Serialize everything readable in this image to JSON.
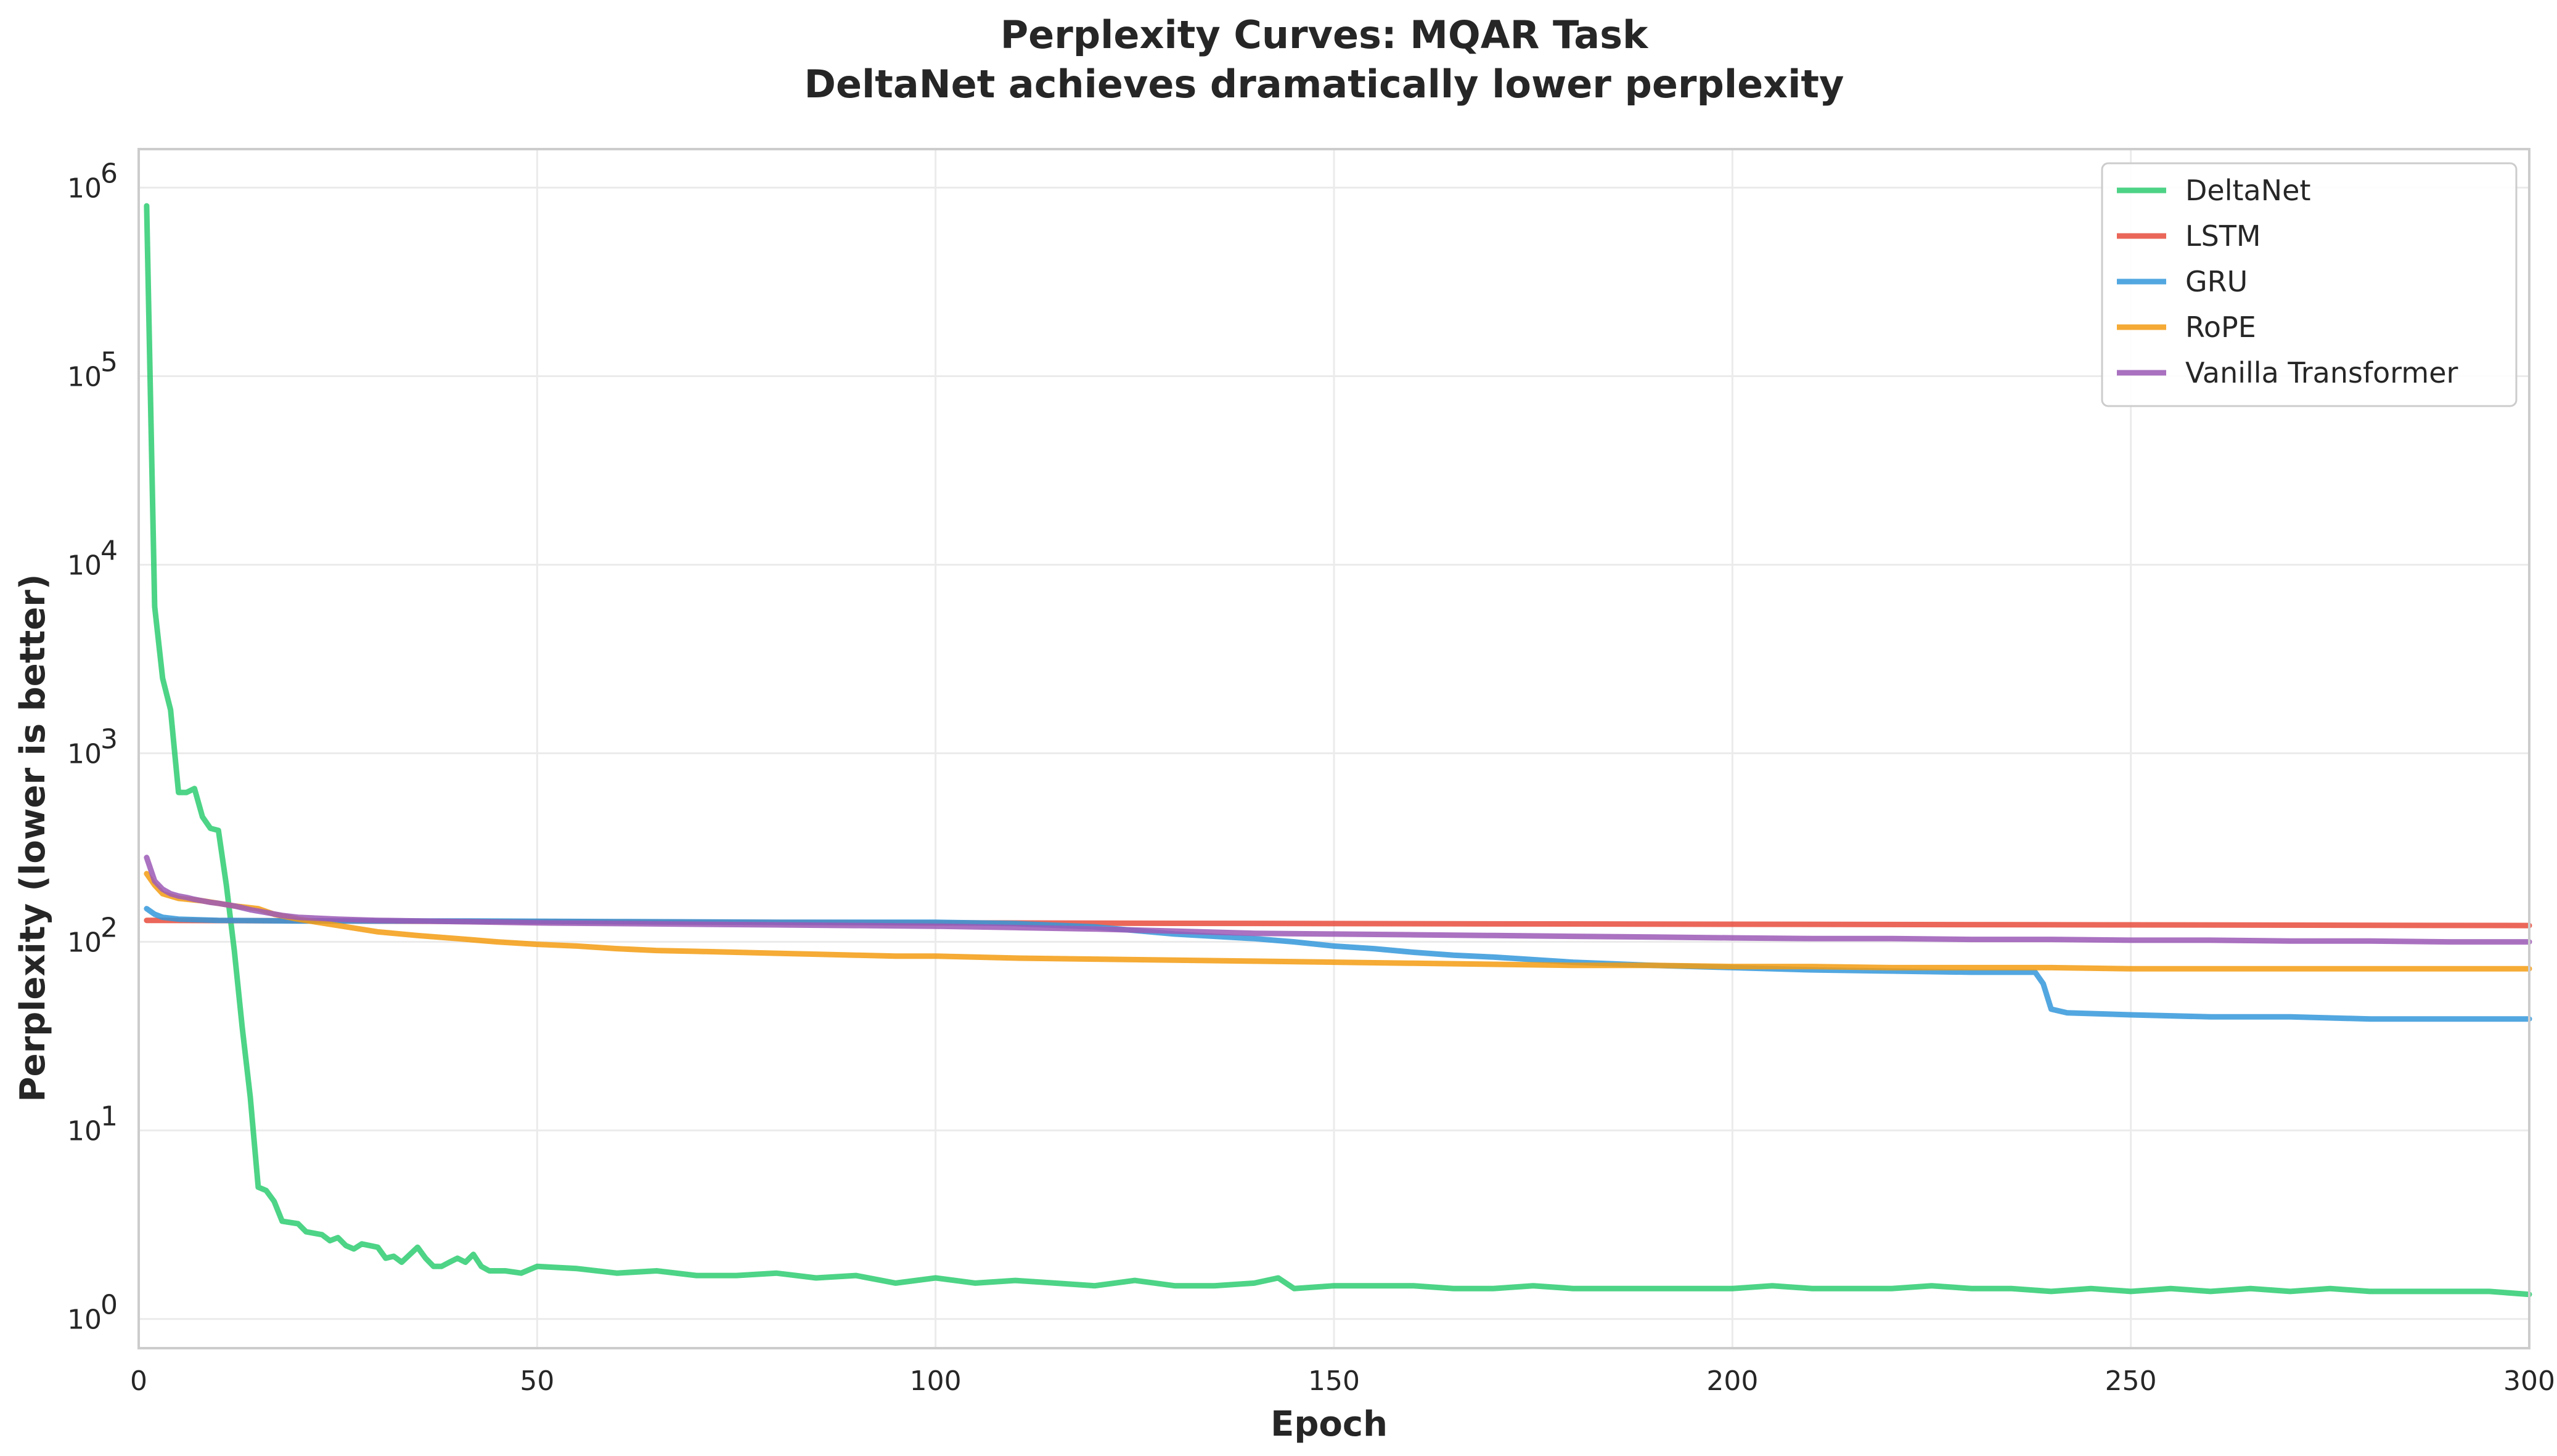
{
  "chart_data": {
    "type": "line",
    "title": "Perplexity Curves: MQAR Task",
    "subtitle": "DeltaNet achieves dramatically lower perplexity",
    "xlabel": "Epoch",
    "ylabel": "Perplexity (lower is better)",
    "xlim": [
      0,
      300
    ],
    "ylim": [
      0.7,
      1600000
    ],
    "yscale": "log",
    "xticks": [
      0,
      50,
      100,
      150,
      200,
      250,
      300
    ],
    "yticks": [
      {
        "value": 1,
        "base": "10",
        "exp": "0"
      },
      {
        "value": 10,
        "base": "10",
        "exp": "1"
      },
      {
        "value": 100,
        "base": "10",
        "exp": "2"
      },
      {
        "value": 1000,
        "base": "10",
        "exp": "3"
      },
      {
        "value": 10000,
        "base": "10",
        "exp": "4"
      },
      {
        "value": 100000,
        "base": "10",
        "exp": "5"
      },
      {
        "value": 1000000,
        "base": "10",
        "exp": "6"
      }
    ],
    "grid": true,
    "legend_position": "top-right",
    "series": [
      {
        "name": "DeltaNet",
        "color": "#2ecc71",
        "points": [
          [
            1,
            800000
          ],
          [
            2,
            6000
          ],
          [
            3,
            2500
          ],
          [
            4,
            1700
          ],
          [
            5,
            620
          ],
          [
            6,
            620
          ],
          [
            7,
            650
          ],
          [
            8,
            460
          ],
          [
            9,
            400
          ],
          [
            10,
            390
          ],
          [
            11,
            200
          ],
          [
            12,
            90
          ],
          [
            13,
            35
          ],
          [
            14,
            15
          ],
          [
            15,
            5
          ],
          [
            16,
            4.8
          ],
          [
            17,
            4.2
          ],
          [
            18,
            3.3
          ],
          [
            20,
            3.2
          ],
          [
            21,
            2.9
          ],
          [
            23,
            2.8
          ],
          [
            24,
            2.6
          ],
          [
            25,
            2.7
          ],
          [
            26,
            2.45
          ],
          [
            27,
            2.35
          ],
          [
            28,
            2.5
          ],
          [
            30,
            2.4
          ],
          [
            31,
            2.1
          ],
          [
            32,
            2.15
          ],
          [
            33,
            2.0
          ],
          [
            35,
            2.4
          ],
          [
            36,
            2.1
          ],
          [
            37,
            1.9
          ],
          [
            38,
            1.9
          ],
          [
            39,
            2.0
          ],
          [
            40,
            2.1
          ],
          [
            41,
            2.0
          ],
          [
            42,
            2.2
          ],
          [
            43,
            1.9
          ],
          [
            44,
            1.8
          ],
          [
            46,
            1.8
          ],
          [
            48,
            1.75
          ],
          [
            50,
            1.9
          ],
          [
            55,
            1.85
          ],
          [
            60,
            1.75
          ],
          [
            65,
            1.8
          ],
          [
            70,
            1.7
          ],
          [
            75,
            1.7
          ],
          [
            80,
            1.75
          ],
          [
            85,
            1.65
          ],
          [
            90,
            1.7
          ],
          [
            95,
            1.55
          ],
          [
            100,
            1.65
          ],
          [
            105,
            1.55
          ],
          [
            110,
            1.6
          ],
          [
            115,
            1.55
          ],
          [
            120,
            1.5
          ],
          [
            125,
            1.6
          ],
          [
            130,
            1.5
          ],
          [
            135,
            1.5
          ],
          [
            140,
            1.55
          ],
          [
            143,
            1.65
          ],
          [
            145,
            1.45
          ],
          [
            150,
            1.5
          ],
          [
            155,
            1.5
          ],
          [
            160,
            1.5
          ],
          [
            165,
            1.45
          ],
          [
            170,
            1.45
          ],
          [
            175,
            1.5
          ],
          [
            180,
            1.45
          ],
          [
            185,
            1.45
          ],
          [
            190,
            1.45
          ],
          [
            195,
            1.45
          ],
          [
            200,
            1.45
          ],
          [
            205,
            1.5
          ],
          [
            210,
            1.45
          ],
          [
            215,
            1.45
          ],
          [
            220,
            1.45
          ],
          [
            225,
            1.5
          ],
          [
            230,
            1.45
          ],
          [
            235,
            1.45
          ],
          [
            240,
            1.4
          ],
          [
            245,
            1.45
          ],
          [
            250,
            1.4
          ],
          [
            255,
            1.45
          ],
          [
            260,
            1.4
          ],
          [
            265,
            1.45
          ],
          [
            270,
            1.4
          ],
          [
            275,
            1.45
          ],
          [
            280,
            1.4
          ],
          [
            285,
            1.4
          ],
          [
            290,
            1.4
          ],
          [
            295,
            1.4
          ],
          [
            300,
            1.35
          ]
        ]
      },
      {
        "name": "LSTM",
        "color": "#e74c3c",
        "points": [
          [
            1,
            130
          ],
          [
            50,
            128
          ],
          [
            100,
            126
          ],
          [
            150,
            125
          ],
          [
            200,
            124
          ],
          [
            250,
            123
          ],
          [
            300,
            122
          ]
        ]
      },
      {
        "name": "GRU",
        "color": "#3498db",
        "points": [
          [
            1,
            150
          ],
          [
            2,
            140
          ],
          [
            3,
            135
          ],
          [
            5,
            132
          ],
          [
            10,
            130
          ],
          [
            20,
            129
          ],
          [
            40,
            129
          ],
          [
            60,
            128
          ],
          [
            80,
            127
          ],
          [
            100,
            127
          ],
          [
            110,
            125
          ],
          [
            120,
            120
          ],
          [
            130,
            110
          ],
          [
            140,
            104
          ],
          [
            145,
            100
          ],
          [
            150,
            95
          ],
          [
            155,
            92
          ],
          [
            160,
            88
          ],
          [
            165,
            85
          ],
          [
            170,
            83
          ],
          [
            180,
            78
          ],
          [
            190,
            75
          ],
          [
            200,
            73
          ],
          [
            210,
            71
          ],
          [
            220,
            70
          ],
          [
            230,
            69
          ],
          [
            238,
            69
          ],
          [
            239,
            60
          ],
          [
            240,
            44
          ],
          [
            242,
            42
          ],
          [
            250,
            41
          ],
          [
            260,
            40
          ],
          [
            270,
            40
          ],
          [
            280,
            39
          ],
          [
            290,
            39
          ],
          [
            300,
            39
          ]
        ]
      },
      {
        "name": "RoPE",
        "color": "#f39c12",
        "points": [
          [
            1,
            230
          ],
          [
            2,
            200
          ],
          [
            3,
            180
          ],
          [
            5,
            170
          ],
          [
            8,
            165
          ],
          [
            10,
            160
          ],
          [
            12,
            155
          ],
          [
            15,
            150
          ],
          [
            17,
            140
          ],
          [
            20,
            132
          ],
          [
            25,
            122
          ],
          [
            30,
            113
          ],
          [
            35,
            108
          ],
          [
            40,
            104
          ],
          [
            45,
            100
          ],
          [
            50,
            97
          ],
          [
            55,
            95
          ],
          [
            60,
            92
          ],
          [
            65,
            90
          ],
          [
            70,
            89
          ],
          [
            75,
            88
          ],
          [
            80,
            87
          ],
          [
            85,
            86
          ],
          [
            90,
            85
          ],
          [
            95,
            84
          ],
          [
            100,
            84
          ],
          [
            110,
            82
          ],
          [
            120,
            81
          ],
          [
            130,
            80
          ],
          [
            140,
            79
          ],
          [
            150,
            78
          ],
          [
            160,
            77
          ],
          [
            170,
            76
          ],
          [
            180,
            75
          ],
          [
            190,
            75
          ],
          [
            200,
            74
          ],
          [
            210,
            74
          ],
          [
            220,
            73
          ],
          [
            230,
            73
          ],
          [
            240,
            73
          ],
          [
            250,
            72
          ],
          [
            260,
            72
          ],
          [
            270,
            72
          ],
          [
            280,
            72
          ],
          [
            290,
            72
          ],
          [
            300,
            72
          ]
        ]
      },
      {
        "name": "Vanilla Transformer",
        "color": "#9b59b6",
        "points": [
          [
            1,
            280
          ],
          [
            2,
            210
          ],
          [
            3,
            190
          ],
          [
            4,
            180
          ],
          [
            5,
            175
          ],
          [
            6,
            172
          ],
          [
            7,
            168
          ],
          [
            8,
            165
          ],
          [
            9,
            162
          ],
          [
            10,
            160
          ],
          [
            12,
            155
          ],
          [
            14,
            148
          ],
          [
            16,
            143
          ],
          [
            18,
            138
          ],
          [
            20,
            135
          ],
          [
            25,
            132
          ],
          [
            30,
            130
          ],
          [
            40,
            128
          ],
          [
            50,
            126
          ],
          [
            60,
            125
          ],
          [
            70,
            124
          ],
          [
            80,
            123
          ],
          [
            90,
            122
          ],
          [
            100,
            121
          ],
          [
            110,
            119
          ],
          [
            120,
            117
          ],
          [
            130,
            114
          ],
          [
            140,
            111
          ],
          [
            150,
            110
          ],
          [
            160,
            109
          ],
          [
            170,
            108
          ],
          [
            180,
            107
          ],
          [
            190,
            106
          ],
          [
            200,
            105
          ],
          [
            210,
            104
          ],
          [
            220,
            104
          ],
          [
            230,
            103
          ],
          [
            240,
            103
          ],
          [
            250,
            102
          ],
          [
            260,
            102
          ],
          [
            270,
            101
          ],
          [
            280,
            101
          ],
          [
            290,
            100
          ],
          [
            300,
            100
          ]
        ]
      }
    ]
  }
}
